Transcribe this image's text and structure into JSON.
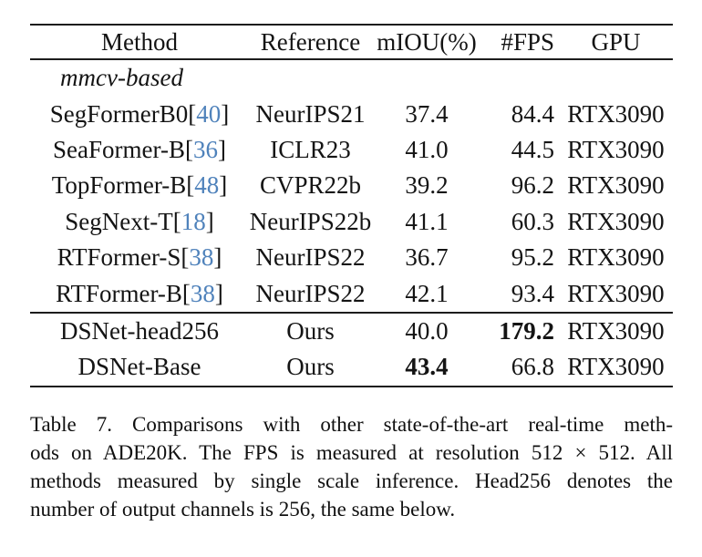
{
  "table": {
    "headers": [
      "Method",
      "Reference",
      "mIOU(%)",
      "#FPS",
      "GPU"
    ],
    "group_label": "mmcv-based",
    "cite_open": "[",
    "cite_close": "]",
    "rows": [
      {
        "section": "mmcv",
        "method": "SegFormerB0",
        "cite": "40",
        "reference": "NeurIPS21",
        "miou": "37.4",
        "fps": "84.4",
        "gpu": "RTX3090",
        "miou_bold": false,
        "fps_bold": false
      },
      {
        "section": "mmcv",
        "method": "SeaFormer-B",
        "cite": "36",
        "reference": "ICLR23",
        "miou": "41.0",
        "fps": "44.5",
        "gpu": "RTX3090",
        "miou_bold": false,
        "fps_bold": false
      },
      {
        "section": "mmcv",
        "method": "TopFormer-B",
        "cite": "48",
        "reference": "CVPR22b",
        "miou": "39.2",
        "fps": "96.2",
        "gpu": "RTX3090",
        "miou_bold": false,
        "fps_bold": false
      },
      {
        "section": "mmcv",
        "method": "SegNext-T",
        "cite": "18",
        "reference": "NeurIPS22b",
        "miou": "41.1",
        "fps": "60.3",
        "gpu": "RTX3090",
        "miou_bold": false,
        "fps_bold": false
      },
      {
        "section": "mmcv",
        "method": "RTFormer-S",
        "cite": "38",
        "reference": "NeurIPS22",
        "miou": "36.7",
        "fps": "95.2",
        "gpu": "RTX3090",
        "miou_bold": false,
        "fps_bold": false
      },
      {
        "section": "mmcv",
        "method": "RTFormer-B",
        "cite": "38",
        "reference": "NeurIPS22",
        "miou": "42.1",
        "fps": "93.4",
        "gpu": "RTX3090",
        "miou_bold": false,
        "fps_bold": false
      },
      {
        "section": "ours",
        "method": "DSNet-head256",
        "cite": null,
        "reference": "Ours",
        "miou": "40.0",
        "fps": "179.2",
        "gpu": "RTX3090",
        "miou_bold": false,
        "fps_bold": true
      },
      {
        "section": "ours",
        "method": "DSNet-Base",
        "cite": null,
        "reference": "Ours",
        "miou": "43.4",
        "fps": "66.8",
        "gpu": "RTX3090",
        "miou_bold": true,
        "fps_bold": false
      }
    ]
  },
  "caption": {
    "lines": [
      "Table 7.  Comparisons with other state-of-the-art real-time meth-",
      "ods on ADE20K. The FPS is measured at resolution 512 × 512. All",
      "methods measured by single scale inference. Head256 denotes the",
      "number of output channels is 256, the same below."
    ]
  },
  "colors": {
    "citation_blue": "#4f82bb",
    "rule_black": "#1c1c1c"
  }
}
